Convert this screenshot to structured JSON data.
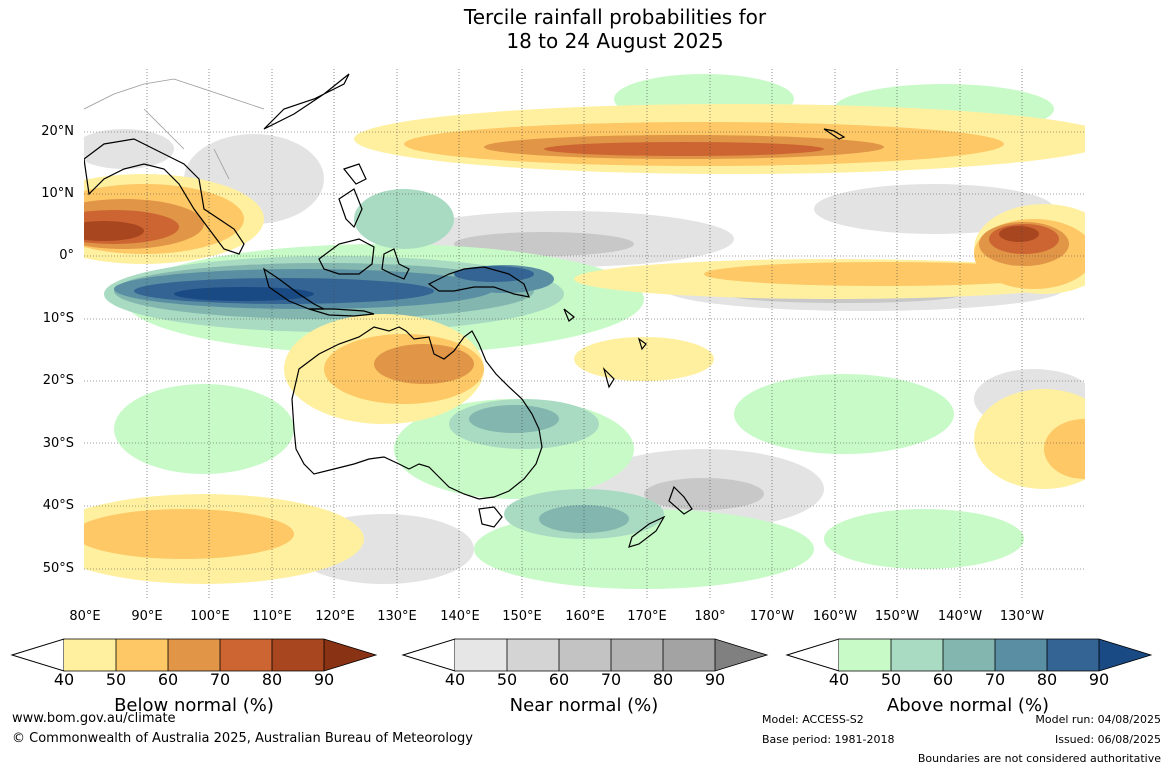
{
  "title_line1": "Tercile rainfall probabilities for",
  "title_line2": "18 to 24 August 2025",
  "lat_labels": [
    "20°N",
    "10°N",
    "0°",
    "10°S",
    "20°S",
    "30°S",
    "40°S",
    "50°S"
  ],
  "lon_labels": [
    "80°E",
    "90°E",
    "100°E",
    "110°E",
    "120°E",
    "130°E",
    "140°E",
    "150°E",
    "160°E",
    "170°E",
    "180°",
    "170°W",
    "160°W",
    "150°W",
    "140°W",
    "130°W"
  ],
  "legends": [
    {
      "caption": "Below normal (%)",
      "ticks": [
        "40",
        "50",
        "60",
        "70",
        "80",
        "90"
      ],
      "colors": [
        "#fff0a0",
        "#fdc865",
        "#e09547",
        "#cc6532",
        "#a8461f",
        "#8a3214"
      ]
    },
    {
      "caption": "Near normal (%)",
      "ticks": [
        "40",
        "50",
        "60",
        "70",
        "80",
        "90"
      ],
      "colors": [
        "#e6e6e6",
        "#d4d4d4",
        "#c3c3c3",
        "#b3b3b3",
        "#a3a3a3",
        "#808080"
      ]
    },
    {
      "caption": "Above normal (%)",
      "ticks": [
        "40",
        "50",
        "60",
        "70",
        "80",
        "90"
      ],
      "colors": [
        "#c8fac8",
        "#a8dbc2",
        "#82b6ae",
        "#5a8ea2",
        "#336494",
        "#1a4a84"
      ]
    }
  ],
  "footer": {
    "website": "www.bom.gov.au/climate",
    "copyright": "© Commonwealth of Australia 2025, Australian Bureau of Meteorology",
    "model": "Model: ACCESS-S2",
    "base_period": "Base period: 1981-2018",
    "model_run": "Model run: 04/08/2025",
    "issued": "Issued: 06/08/2025",
    "disclaimer": "Boundaries are not considered authoritative"
  }
}
